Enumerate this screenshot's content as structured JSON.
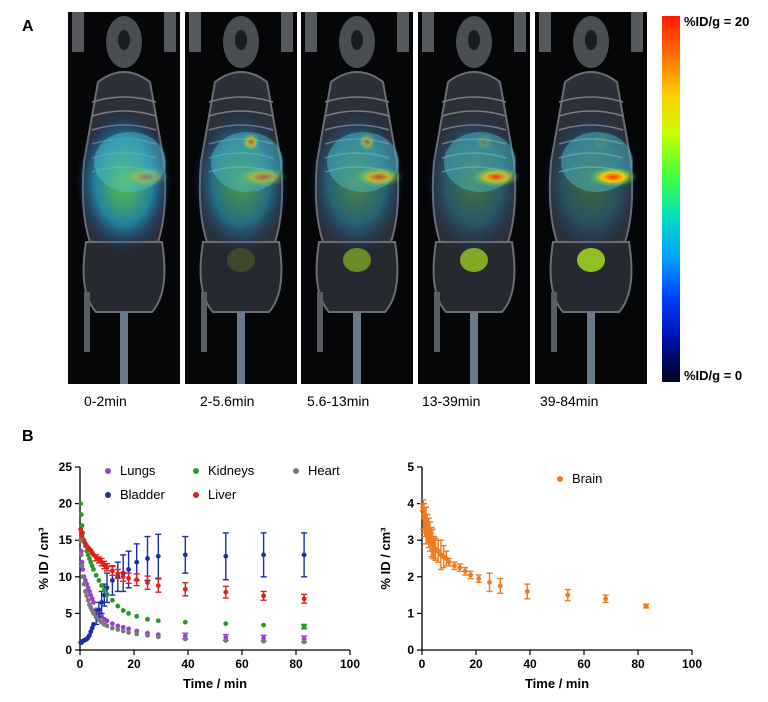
{
  "figure": {
    "panel_a_label": "A",
    "panel_b_label": "B",
    "frames": [
      {
        "label": "0-2min",
        "liver": 0.35,
        "heart": 0.0,
        "bladder": 0.0,
        "diffuse": 0.75
      },
      {
        "label": "2-5.6min",
        "liver": 0.5,
        "heart": 0.6,
        "bladder": 0.15,
        "diffuse": 0.55
      },
      {
        "label": "5.6-13min",
        "liver": 0.65,
        "heart": 0.45,
        "bladder": 0.45,
        "diffuse": 0.45
      },
      {
        "label": "13-39min",
        "liver": 0.75,
        "heart": 0.2,
        "bladder": 0.6,
        "diffuse": 0.35
      },
      {
        "label": "39-84min",
        "liver": 0.95,
        "heart": 0.1,
        "bladder": 0.7,
        "diffuse": 0.3
      }
    ],
    "colorbar": {
      "max_label": "%ID/g = 20",
      "min_label": "%ID/g = 0"
    }
  },
  "chart_data": [
    {
      "type": "scatter",
      "xlabel": "Time / min",
      "ylabel": "% ID / cm³",
      "xlim": [
        0,
        100
      ],
      "ylim": [
        0,
        25
      ],
      "xticks": [
        "0",
        "20",
        "40",
        "60",
        "80",
        "100"
      ],
      "yticks": [
        "0",
        "5",
        "10",
        "15",
        "20",
        "25"
      ],
      "legend_placement": "top",
      "series": [
        {
          "name": "Lungs",
          "color": "#9b3fd6",
          "x": [
            0.25,
            0.5,
            0.75,
            1,
            1.5,
            2,
            2.5,
            3,
            3.5,
            4,
            4.5,
            5,
            6,
            7,
            8,
            9,
            10,
            12,
            14,
            16,
            18,
            21,
            25,
            29,
            39,
            54,
            68,
            83
          ],
          "y": [
            15,
            13.5,
            12,
            11,
            10,
            9.5,
            9,
            8.5,
            8,
            7.5,
            7,
            6.5,
            5.5,
            5,
            4.6,
            4.2,
            4,
            3.6,
            3.3,
            3.1,
            2.9,
            2.6,
            2.3,
            2.1,
            1.9,
            1.7,
            1.6,
            1.5
          ],
          "err": [
            0,
            0,
            0,
            0,
            0,
            0,
            0,
            0,
            0,
            0,
            0,
            0,
            0,
            0,
            0,
            0,
            0,
            0,
            0,
            0,
            0,
            0,
            0,
            0,
            0.4,
            0.4,
            0.4,
            0.4
          ]
        },
        {
          "name": "Bladder",
          "color": "#1c2fa8",
          "x": [
            0.25,
            0.5,
            0.75,
            1,
            1.5,
            2,
            2.5,
            3,
            3.5,
            4,
            4.5,
            5,
            6,
            7,
            8,
            9,
            10,
            12,
            14,
            16,
            18,
            21,
            25,
            29,
            39,
            54,
            68,
            83
          ],
          "y": [
            1,
            1,
            1.1,
            1.2,
            1.3,
            1.4,
            1.5,
            1.7,
            2,
            2.5,
            3,
            3.5,
            4.5,
            5.5,
            6.5,
            7.5,
            8.5,
            9.5,
            10,
            10.5,
            11,
            12,
            12.5,
            12.8,
            13,
            12.8,
            13,
            13
          ],
          "err": [
            0,
            0,
            0,
            0,
            0,
            0,
            0,
            0,
            0,
            0,
            0,
            0,
            1,
            1,
            1.5,
            1.5,
            2,
            2,
            2,
            2.5,
            2.5,
            2.5,
            3,
            3,
            2.5,
            3.2,
            3,
            3
          ]
        },
        {
          "name": "Kidneys",
          "color": "#2a9a2a",
          "x": [
            0.25,
            0.5,
            0.75,
            1,
            1.5,
            2,
            2.5,
            3,
            3.5,
            4,
            4.5,
            5,
            6,
            7,
            8,
            9,
            10,
            12,
            14,
            16,
            18,
            21,
            25,
            29,
            39,
            54,
            68,
            83
          ],
          "y": [
            20,
            18.5,
            17,
            16,
            15,
            14.2,
            13.5,
            13,
            12.5,
            12,
            11.5,
            11,
            10.2,
            9.5,
            8.8,
            8.2,
            7.6,
            6.8,
            6,
            5.4,
            5,
            4.6,
            4.2,
            4,
            3.8,
            3.6,
            3.4,
            3.2
          ],
          "err": [
            0,
            0,
            0,
            0,
            0,
            0,
            0,
            0,
            0,
            0,
            0,
            0,
            0,
            0,
            0,
            0,
            0,
            0,
            0,
            0,
            0,
            0,
            0,
            0,
            0,
            0,
            0,
            0.3
          ]
        },
        {
          "name": "Liver",
          "color": "#e0201c",
          "x": [
            0.25,
            0.5,
            0.75,
            1,
            1.5,
            2,
            2.5,
            3,
            3.5,
            4,
            4.5,
            5,
            6,
            7,
            8,
            9,
            10,
            12,
            14,
            16,
            18,
            21,
            25,
            29,
            39,
            54,
            68,
            83
          ],
          "y": [
            16.5,
            16,
            15.5,
            15,
            14.8,
            14.5,
            14.2,
            14,
            13.8,
            13.6,
            13.3,
            13,
            12.6,
            12.3,
            12,
            11.6,
            11.3,
            10.8,
            10.4,
            10,
            9.8,
            9.6,
            9.2,
            8.8,
            8.3,
            7.9,
            7.4,
            7
          ],
          "err": [
            0,
            0,
            0,
            0,
            0,
            0,
            0,
            0,
            0,
            0,
            0,
            0,
            0.4,
            0.4,
            0.5,
            0.5,
            0.5,
            0.6,
            0.6,
            0.6,
            0.7,
            0.8,
            0.9,
            0.9,
            0.9,
            0.8,
            0.6,
            0.6
          ]
        },
        {
          "name": "Heart",
          "color": "#7a7a7a",
          "x": [
            0.25,
            0.5,
            0.75,
            1,
            1.5,
            2,
            2.5,
            3,
            3.5,
            4,
            4.5,
            5,
            6,
            7,
            8,
            9,
            10,
            12,
            14,
            16,
            18,
            21,
            25,
            29,
            39,
            54,
            68,
            83
          ],
          "y": [
            15,
            13,
            11.5,
            10,
            9,
            8,
            7.4,
            6.8,
            6.2,
            5.8,
            5.4,
            5,
            4.5,
            4.1,
            3.8,
            3.5,
            3.3,
            3,
            2.8,
            2.6,
            2.4,
            2.2,
            2,
            1.8,
            1.5,
            1.3,
            1.2,
            1.1
          ],
          "err": [
            0,
            0,
            0,
            0,
            0,
            0,
            0,
            0,
            0,
            0,
            0,
            0,
            0,
            0,
            0,
            0,
            0,
            0,
            0,
            0,
            0,
            0,
            0,
            0,
            0,
            0,
            0,
            0
          ]
        }
      ]
    },
    {
      "type": "scatter",
      "xlabel": "Time / min",
      "ylabel": "% ID / cm³",
      "xlim": [
        0,
        100
      ],
      "ylim": [
        0,
        5
      ],
      "xticks": [
        "0",
        "20",
        "40",
        "60",
        "80",
        "100"
      ],
      "yticks": [
        "0",
        "1",
        "2",
        "3",
        "4",
        "5"
      ],
      "legend_placement": "top-center",
      "series": [
        {
          "name": "Brain",
          "color": "#f07a1e",
          "x": [
            0.25,
            0.5,
            0.75,
            1,
            1.5,
            2,
            2.5,
            3,
            3.5,
            4,
            4.5,
            5,
            6,
            7,
            8,
            9,
            10,
            12,
            14,
            16,
            18,
            21,
            25,
            29,
            39,
            54,
            68,
            83
          ],
          "y": [
            3.9,
            3.7,
            3.6,
            3.5,
            3.4,
            3.3,
            3.2,
            3.1,
            2.95,
            2.9,
            2.8,
            2.75,
            2.7,
            2.6,
            2.55,
            2.5,
            2.4,
            2.3,
            2.25,
            2.15,
            2.05,
            1.95,
            1.85,
            1.75,
            1.6,
            1.5,
            1.4,
            1.2
          ],
          "err": [
            0.1,
            0.4,
            0.4,
            0.4,
            0.5,
            0.4,
            0.4,
            0.4,
            0.4,
            0.4,
            0.3,
            0.3,
            0.3,
            0.4,
            0.3,
            0.2,
            0.1,
            0.1,
            0.1,
            0.1,
            0.1,
            0.1,
            0.25,
            0.2,
            0.2,
            0.15,
            0.1,
            0.05
          ]
        }
      ]
    }
  ]
}
